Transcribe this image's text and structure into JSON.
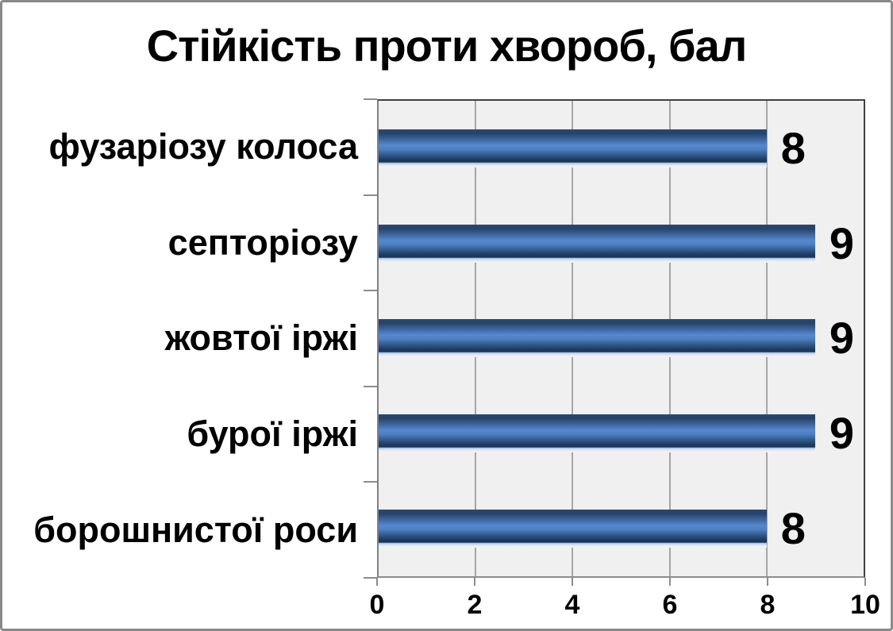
{
  "window": {
    "background": "#FFFFFF",
    "border_color": "#8A8A8A"
  },
  "chart_data": {
    "type": "bar",
    "orientation": "horizontal",
    "title": "Стійкість проти хвороб, бал",
    "categories": [
      "фузаріозу колоса",
      "септоріозу",
      "жовтої іржі",
      "бурої іржі",
      "борошнистої роси"
    ],
    "values": [
      8,
      9,
      9,
      9,
      8
    ],
    "data_labels": [
      "8",
      "9",
      "9",
      "9",
      "8"
    ],
    "xlabel": "",
    "ylabel": "",
    "xlim": [
      0,
      10
    ],
    "xticks": [
      0,
      2,
      4,
      6,
      8,
      10
    ],
    "grid": "vertical-major",
    "legend": "none",
    "colors": {
      "bar_dark": "#1D3A5F",
      "bar_light": "#5688CF",
      "bar_bevel": "#DCE6F3",
      "plot_background": "#F0F0F0",
      "gridline": "#A6A6A6",
      "axis_line": "#8C8C8C",
      "plot_border": "#404040",
      "text": "#000000"
    }
  }
}
